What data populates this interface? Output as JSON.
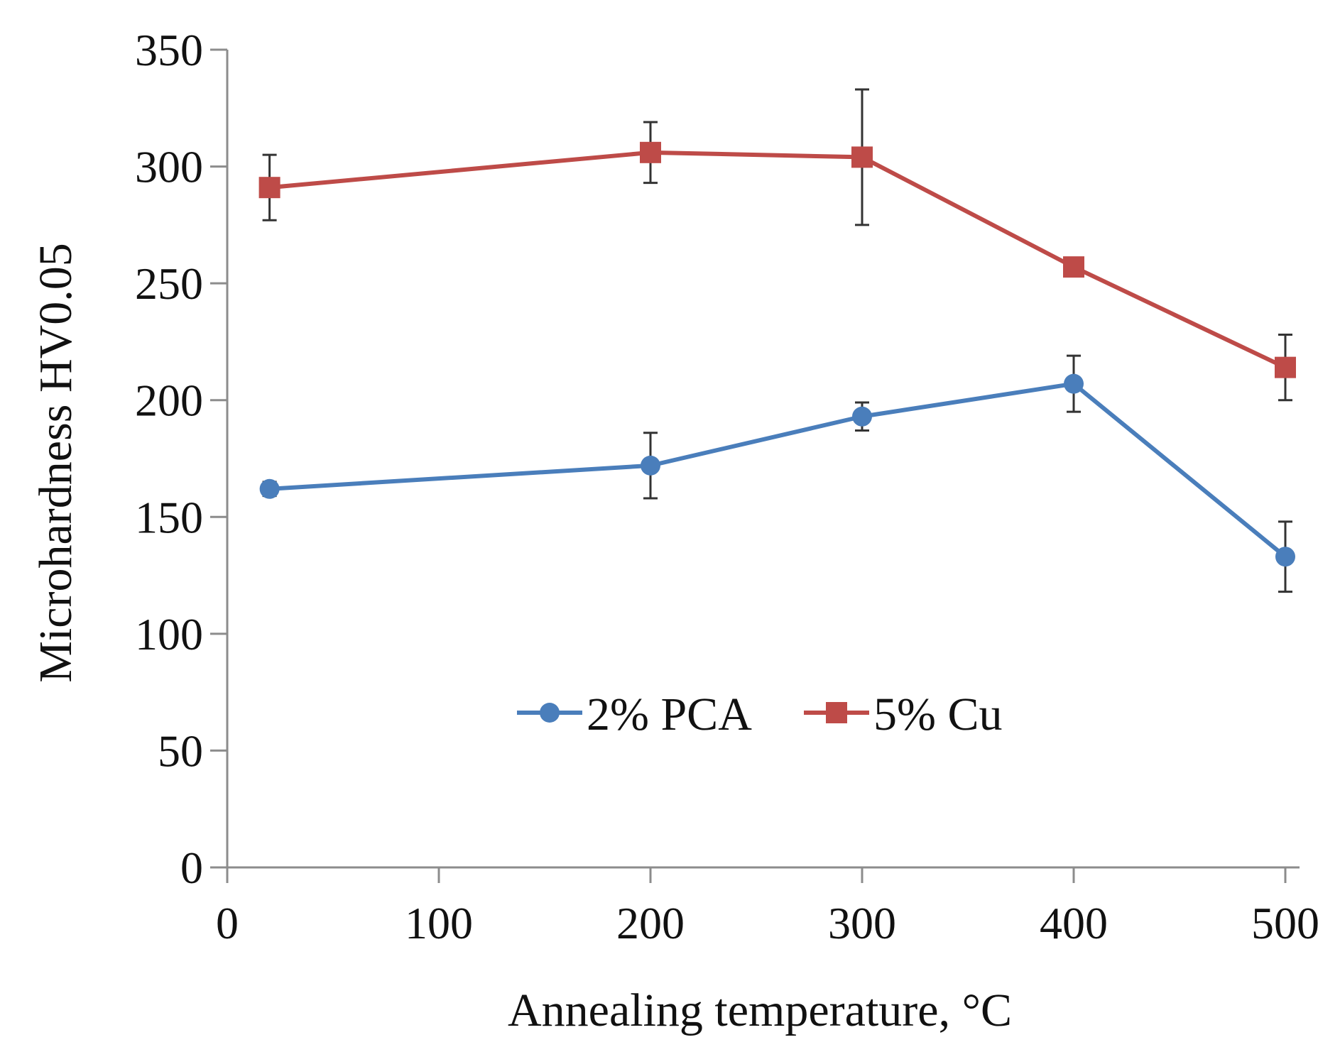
{
  "chart_data": {
    "type": "line",
    "title": "",
    "xlabel": "Annealing temperature, °C",
    "ylabel": "Microhardness HV0.05",
    "xlim": [
      0,
      500
    ],
    "ylim": [
      0,
      350
    ],
    "xticks": [
      0,
      100,
      200,
      300,
      400,
      500
    ],
    "yticks": [
      0,
      50,
      100,
      150,
      200,
      250,
      300,
      350
    ],
    "xtick_labels": [
      "0",
      "100",
      "200",
      "300",
      "400",
      "500"
    ],
    "ytick_labels": [
      "0",
      "50",
      "100",
      "150",
      "200",
      "250",
      "300",
      "350"
    ],
    "grid": false,
    "legend_position": "center",
    "series": [
      {
        "name": "2% PCA",
        "color": "#4a7ebb",
        "marker": "circle",
        "x": [
          20,
          200,
          300,
          400,
          500
        ],
        "values": [
          162,
          172,
          193,
          207,
          133
        ],
        "error": [
          3,
          14,
          6,
          12,
          15
        ]
      },
      {
        "name": "5% Cu",
        "color": "#be4b48",
        "marker": "square",
        "x": [
          20,
          200,
          300,
          400,
          500
        ],
        "values": [
          291,
          306,
          304,
          257,
          214
        ],
        "error": [
          14,
          13,
          29,
          0,
          14
        ]
      }
    ]
  }
}
